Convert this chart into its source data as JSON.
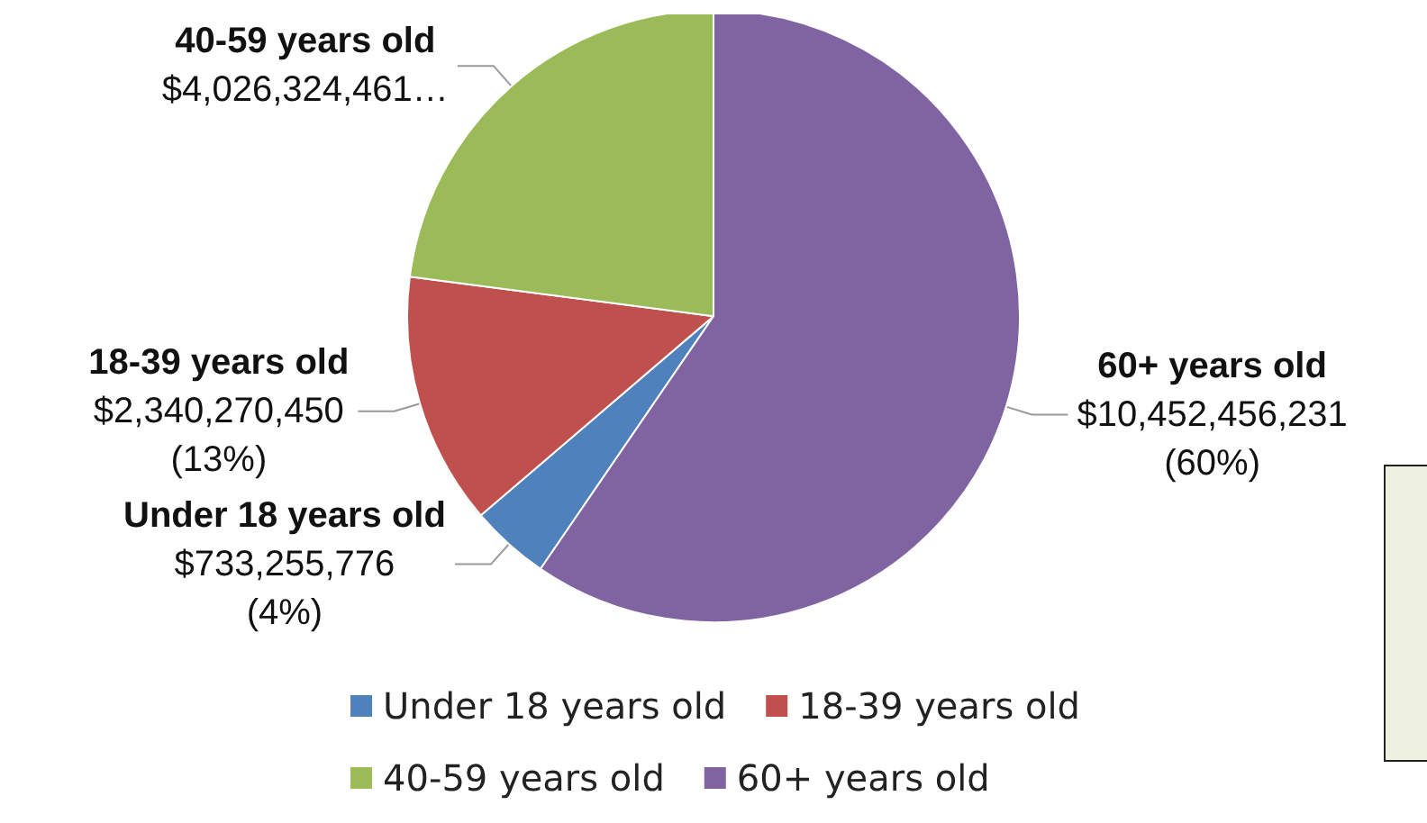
{
  "chart_data": {
    "type": "pie",
    "categories": [
      "Under 18 years old",
      "18-39 years old",
      "40-59 years old",
      "60+ years old"
    ],
    "values": [
      733255776,
      2340270450,
      4026324461,
      10452456231
    ],
    "colors": [
      "#4f81bd",
      "#c0504d",
      "#9bbb59",
      "#8064a2"
    ],
    "value_labels": [
      "$733,255,776\n(4%)",
      "$2,340,270,450\n(13%)",
      "$4,026,324,461…",
      "$10,452,456,231\n(60%)"
    ],
    "legend": "bottom"
  }
}
